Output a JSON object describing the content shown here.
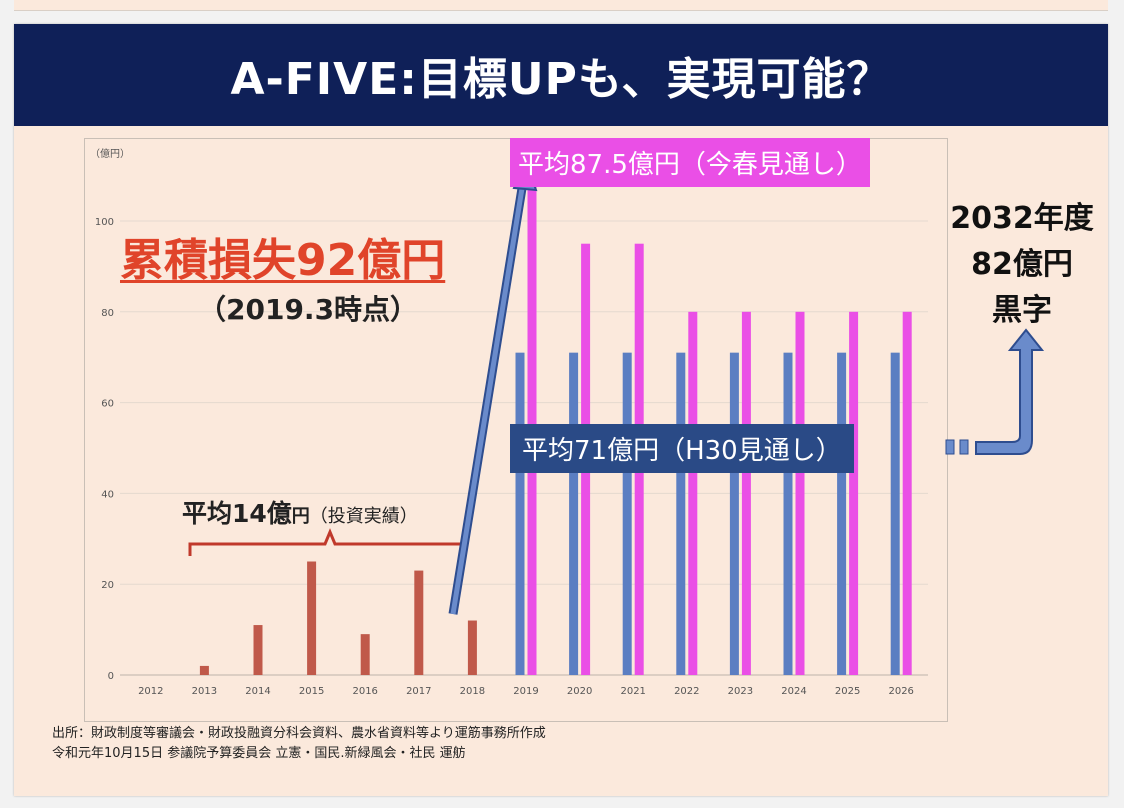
{
  "slide": {
    "title": "A-FIVE:目標UPも、実現可能？"
  },
  "annotations": {
    "loss_title": "累積損失92億円",
    "loss_sub": "（2019.3時点）",
    "avg14_main": "平均14億",
    "avg14_unit": "円",
    "avg14_note": "（投資実績）",
    "avg87": "平均87.5億円（今春見通し）",
    "avg71": "平均71億円（H30見通し）",
    "forecast_line1": "2032年度",
    "forecast_line2": "82億円",
    "forecast_line3": "黒字"
  },
  "footnote": {
    "line1": "出所：財政制度等審議会・財政投融資分科会資料、農水省資料等より運筋事務所作成",
    "line2": "令和元年10月15日 参議院予算委員会 立憲・国民.新緑風会・社民 運舫"
  },
  "colors": {
    "banner": "#0f2058",
    "actual": "#c0594a",
    "h30": "#5b7ec2",
    "spring": "#ea4fe6",
    "loss_text": "#e0442a"
  },
  "chart_data": {
    "type": "bar",
    "ylabel": "（億円）",
    "ylim": [
      0,
      100
    ],
    "yticks": [
      0,
      20,
      40,
      60,
      80,
      100
    ],
    "grid": true,
    "categories": [
      "2012",
      "2013",
      "2014",
      "2015",
      "2016",
      "2017",
      "2018",
      "2019",
      "2020",
      "2021",
      "2022",
      "2023",
      "2024",
      "2025",
      "2026"
    ],
    "series": [
      {
        "name": "投資実績",
        "color": "#c0594a",
        "values": [
          0,
          2,
          11,
          25,
          9,
          23,
          12,
          null,
          null,
          null,
          null,
          null,
          null,
          null,
          null
        ]
      },
      {
        "name": "H30見通し",
        "color": "#5b7ec2",
        "values": [
          null,
          null,
          null,
          null,
          null,
          null,
          null,
          71,
          71,
          71,
          71,
          71,
          71,
          71,
          71
        ]
      },
      {
        "name": "今春見通し",
        "color": "#ea4fe6",
        "values": [
          null,
          null,
          null,
          null,
          null,
          null,
          null,
          110,
          95,
          95,
          80,
          80,
          80,
          80,
          80
        ]
      }
    ]
  }
}
